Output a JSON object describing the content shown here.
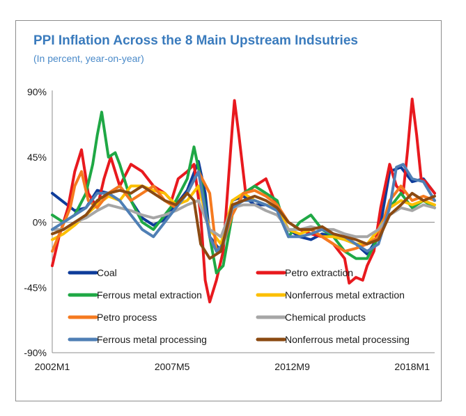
{
  "chart_data": {
    "type": "line",
    "title": "PPI Inflation Across the 8 Main Upstream Indsutries",
    "subtitle": "(In percent, year-on-year)",
    "ylim": [
      -90,
      90
    ],
    "y_ticks": [
      "90%",
      "45%",
      "0%",
      "-45%",
      "-90%"
    ],
    "y_tick_values": [
      90,
      45,
      0,
      -45,
      -90
    ],
    "x_ticks": [
      "2002M1",
      "2007M5",
      "2012M9",
      "2018M1"
    ],
    "x_tick_values": [
      2002.0,
      2007.33,
      2012.67,
      2018.0
    ],
    "x_range": [
      2002.0,
      2019.0
    ],
    "legend_position": "bottom, two columns inside plot",
    "series": [
      {
        "name": "Coal",
        "color": "#0e3c9a",
        "x": [
          2002.0,
          2002.5,
          2003.0,
          2003.5,
          2004.0,
          2004.5,
          2005.0,
          2005.5,
          2006.0,
          2006.5,
          2007.0,
          2007.5,
          2008.0,
          2008.5,
          2008.8,
          2009.0,
          2009.5,
          2010.0,
          2010.5,
          2011.0,
          2011.5,
          2012.0,
          2012.5,
          2013.0,
          2013.5,
          2014.0,
          2014.5,
          2015.0,
          2015.5,
          2016.0,
          2016.5,
          2017.0,
          2017.5,
          2018.0,
          2018.5,
          2019.0
        ],
        "y": [
          20,
          14,
          8,
          10,
          22,
          20,
          25,
          15,
          3,
          -2,
          2,
          12,
          22,
          42,
          20,
          -10,
          -20,
          15,
          18,
          12,
          12,
          10,
          -5,
          -10,
          -12,
          -8,
          -10,
          -12,
          -15,
          -22,
          -10,
          35,
          38,
          28,
          30,
          20
        ]
      },
      {
        "name": "Petro extraction",
        "color": "#e8191e",
        "x": [
          2002.0,
          2002.3,
          2002.7,
          2003.0,
          2003.3,
          2003.6,
          2004.0,
          2004.3,
          2004.6,
          2005.0,
          2005.5,
          2006.0,
          2006.5,
          2007.0,
          2007.3,
          2007.6,
          2008.0,
          2008.3,
          2008.6,
          2008.8,
          2009.0,
          2009.3,
          2009.6,
          2010.0,
          2010.1,
          2010.3,
          2010.6,
          2011.0,
          2011.5,
          2012.0,
          2012.5,
          2013.0,
          2013.5,
          2014.0,
          2014.5,
          2015.0,
          2015.2,
          2015.5,
          2015.8,
          2016.0,
          2016.3,
          2016.6,
          2017.0,
          2017.3,
          2017.6,
          2017.8,
          2018.0,
          2018.2,
          2018.4,
          2018.6,
          2019.0
        ],
        "y": [
          -30,
          -10,
          10,
          35,
          50,
          20,
          10,
          30,
          45,
          25,
          40,
          35,
          25,
          20,
          15,
          30,
          35,
          40,
          5,
          -40,
          -55,
          -40,
          -20,
          65,
          84,
          60,
          20,
          25,
          30,
          10,
          0,
          -5,
          -8,
          -10,
          -15,
          -25,
          -42,
          -38,
          -40,
          -30,
          -20,
          10,
          40,
          25,
          20,
          50,
          85,
          60,
          30,
          28,
          20
        ]
      },
      {
        "name": "Ferrous metal extraction",
        "color": "#1fa845",
        "x": [
          2002.0,
          2002.5,
          2003.0,
          2003.5,
          2003.8,
          2004.0,
          2004.2,
          2004.5,
          2004.8,
          2005.0,
          2005.5,
          2006.0,
          2006.5,
          2007.0,
          2007.5,
          2008.0,
          2008.3,
          2008.6,
          2009.0,
          2009.3,
          2009.6,
          2010.0,
          2010.5,
          2011.0,
          2011.5,
          2012.0,
          2012.5,
          2013.0,
          2013.5,
          2014.0,
          2014.5,
          2015.0,
          2015.5,
          2016.0,
          2016.5,
          2017.0,
          2017.5,
          2018.0,
          2018.5,
          2019.0
        ],
        "y": [
          5,
          0,
          5,
          20,
          40,
          60,
          76,
          45,
          48,
          40,
          15,
          0,
          -5,
          5,
          15,
          30,
          52,
          30,
          -10,
          -35,
          -30,
          5,
          20,
          25,
          20,
          15,
          -10,
          0,
          5,
          -5,
          -10,
          -20,
          -25,
          -25,
          -10,
          10,
          20,
          10,
          15,
          10
        ]
      },
      {
        "name": "Nonferrous metal extraction",
        "color": "#fcbf00",
        "x": [
          2002.0,
          2002.5,
          2003.0,
          2003.5,
          2004.0,
          2004.5,
          2005.0,
          2005.5,
          2006.0,
          2006.5,
          2007.0,
          2007.5,
          2008.0,
          2008.5,
          2009.0,
          2009.5,
          2010.0,
          2010.5,
          2011.0,
          2011.5,
          2012.0,
          2012.5,
          2013.0,
          2013.5,
          2014.0,
          2014.5,
          2015.0,
          2015.5,
          2016.0,
          2016.5,
          2017.0,
          2017.5,
          2018.0,
          2018.5,
          2019.0
        ],
        "y": [
          -12,
          -8,
          -2,
          5,
          12,
          18,
          15,
          25,
          25,
          22,
          20,
          12,
          15,
          25,
          -5,
          -15,
          15,
          20,
          15,
          12,
          10,
          -5,
          -8,
          -5,
          -10,
          -10,
          -12,
          -15,
          -15,
          -5,
          10,
          15,
          12,
          15,
          12
        ]
      },
      {
        "name": "Petro process",
        "color": "#f57a1f",
        "x": [
          2002.0,
          2002.4,
          2002.8,
          2003.0,
          2003.3,
          2003.6,
          2004.0,
          2004.5,
          2005.0,
          2005.5,
          2006.0,
          2006.5,
          2007.0,
          2007.5,
          2008.0,
          2008.5,
          2009.0,
          2009.3,
          2009.6,
          2010.0,
          2010.5,
          2011.0,
          2011.5,
          2012.0,
          2012.5,
          2013.0,
          2013.5,
          2014.0,
          2014.5,
          2015.0,
          2015.5,
          2016.0,
          2016.5,
          2017.0,
          2017.5,
          2018.0,
          2018.5,
          2019.0
        ],
        "y": [
          -20,
          -5,
          10,
          25,
          35,
          15,
          10,
          20,
          25,
          15,
          20,
          25,
          15,
          10,
          20,
          35,
          20,
          -20,
          -15,
          5,
          20,
          22,
          18,
          12,
          0,
          -5,
          -5,
          -10,
          -15,
          -20,
          -18,
          -15,
          -10,
          15,
          25,
          15,
          18,
          15
        ]
      },
      {
        "name": "Chemical products",
        "color": "#a6a6a6",
        "x": [
          2002.0,
          2002.5,
          2003.0,
          2003.5,
          2004.0,
          2004.5,
          2005.0,
          2005.5,
          2006.0,
          2006.5,
          2007.0,
          2007.5,
          2008.0,
          2008.5,
          2009.0,
          2009.5,
          2010.0,
          2010.5,
          2011.0,
          2011.5,
          2012.0,
          2012.5,
          2013.0,
          2013.5,
          2014.0,
          2014.5,
          2015.0,
          2015.5,
          2016.0,
          2016.5,
          2017.0,
          2017.5,
          2018.0,
          2018.5,
          2019.0
        ],
        "y": [
          -5,
          -5,
          0,
          3,
          8,
          12,
          10,
          8,
          5,
          3,
          5,
          8,
          12,
          15,
          -5,
          -10,
          10,
          12,
          12,
          8,
          5,
          -5,
          -5,
          -3,
          -5,
          -5,
          -8,
          -10,
          -10,
          -5,
          5,
          10,
          8,
          12,
          10
        ]
      },
      {
        "name": "Ferrous metal processing",
        "color": "#4f7fb5",
        "x": [
          2002.0,
          2002.5,
          2003.0,
          2003.5,
          2004.0,
          2004.5,
          2005.0,
          2005.5,
          2006.0,
          2006.5,
          2007.0,
          2007.5,
          2008.0,
          2008.5,
          2009.0,
          2009.3,
          2009.6,
          2010.0,
          2010.5,
          2011.0,
          2011.5,
          2012.0,
          2012.5,
          2013.0,
          2013.5,
          2014.0,
          2014.5,
          2015.0,
          2015.5,
          2016.0,
          2016.5,
          2017.0,
          2017.3,
          2017.6,
          2018.0,
          2018.5,
          2019.0
        ],
        "y": [
          -5,
          0,
          5,
          10,
          20,
          20,
          15,
          5,
          -5,
          -10,
          0,
          10,
          20,
          35,
          -10,
          -20,
          -15,
          10,
          15,
          15,
          12,
          8,
          -10,
          -10,
          -8,
          -5,
          -8,
          -10,
          -15,
          -20,
          -15,
          10,
          38,
          40,
          30,
          28,
          15
        ]
      },
      {
        "name": "Nonferrous metal processing",
        "color": "#8b4a12",
        "x": [
          2002.0,
          2002.5,
          2003.0,
          2003.5,
          2004.0,
          2004.5,
          2005.0,
          2005.5,
          2006.0,
          2006.5,
          2007.0,
          2007.5,
          2008.0,
          2008.3,
          2008.6,
          2009.0,
          2009.5,
          2010.0,
          2010.5,
          2011.0,
          2011.5,
          2012.0,
          2012.5,
          2013.0,
          2013.5,
          2014.0,
          2014.5,
          2015.0,
          2015.5,
          2016.0,
          2016.5,
          2017.0,
          2017.5,
          2018.0,
          2018.5,
          2019.0
        ],
        "y": [
          -8,
          -5,
          0,
          5,
          15,
          20,
          22,
          20,
          25,
          20,
          15,
          12,
          20,
          15,
          -15,
          -25,
          -20,
          12,
          15,
          18,
          15,
          10,
          0,
          -5,
          -5,
          -3,
          -8,
          -10,
          -12,
          -15,
          -12,
          5,
          12,
          20,
          15,
          18
        ]
      }
    ]
  }
}
